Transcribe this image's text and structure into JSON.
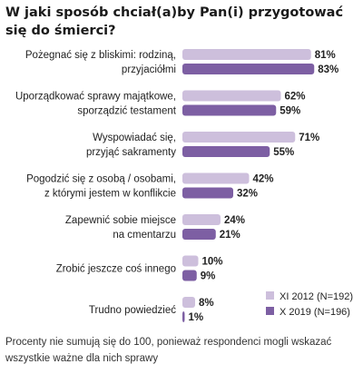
{
  "chart_data": {
    "type": "bar",
    "title": "W jaki sposób chciał(a)by Pan(i) przygotować się do śmierci?",
    "categories": [
      [
        "Pożegnać się z bliskimi: rodziną,",
        "przyjaciółmi"
      ],
      [
        "Uporządkować sprawy majątkowe,",
        "sporządzić testament"
      ],
      [
        "Wyspowiadać się,",
        "przyjąć sakramenty"
      ],
      [
        "Pogodzić się z osobą / osobami,",
        "z którymi jestem w konflikcie"
      ],
      [
        "Zapewnić sobie miejsce",
        "na cmentarzu"
      ],
      [
        "Zrobić jeszcze coś innego"
      ],
      [
        "Trudno powiedzieć"
      ]
    ],
    "series": [
      {
        "name": "XI 2012 (N=192)",
        "color": "#cdbfdc",
        "values": [
          81,
          62,
          71,
          42,
          24,
          10,
          8
        ]
      },
      {
        "name": "X 2019 (N=196)",
        "color": "#7d5fa3",
        "values": [
          83,
          59,
          55,
          32,
          21,
          9,
          1
        ]
      }
    ],
    "value_suffix": "%",
    "xlim": [
      0,
      100
    ],
    "legend_position": "bottom-right",
    "grid": false
  },
  "footnote": "Procenty nie sumują się do 100, ponieważ respondenci mogli wskazać wszystkie ważne dla nich sprawy"
}
